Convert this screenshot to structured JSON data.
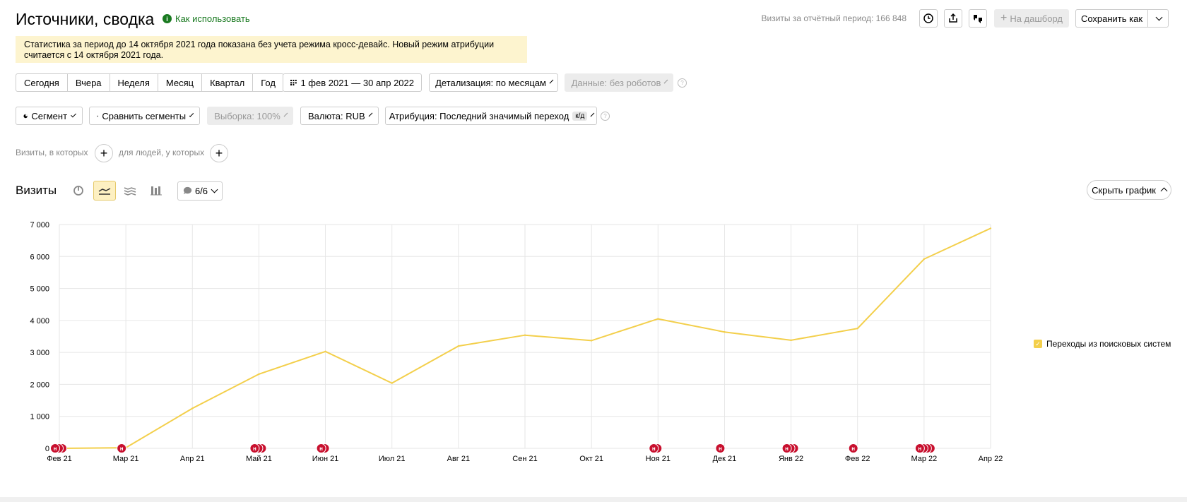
{
  "header": {
    "title": "Источники, сводка",
    "howto": "Как использовать",
    "visits_total": "Визиты за отчётный период: 166 848",
    "dashboard_btn": "На дашборд",
    "save_btn": "Сохранить как"
  },
  "notice": "Статистика за период до 14 октября 2021 года показана без учета режима кросс-девайс. Новый режим атрибуции считается с 14 октября 2021 года.",
  "periods": [
    "Сегодня",
    "Вчера",
    "Неделя",
    "Месяц",
    "Квартал",
    "Год"
  ],
  "date_range": "1 фев 2021 — 30 апр 2022",
  "detail": "Детализация: по месяцам",
  "data_filter": "Данные: без роботов",
  "segment": "Сегмент",
  "compare": "Сравнить сегменты",
  "sample": "Выборка: 100%",
  "currency": "Валюта: RUB",
  "attribution": "Атрибуция: Последний значимый переход",
  "attribution_badge": "к/д",
  "filters": {
    "visits_where": "Визиты, в которых",
    "people_where": "для людей, у которых"
  },
  "chart_header": {
    "title": "Визиты",
    "series_count": "6/6",
    "hide_btn": "Скрыть график"
  },
  "legend": {
    "label": "Переходы из поисковых систем",
    "color": "#f3cf4b"
  },
  "chart_data": {
    "type": "line",
    "x": [
      "Фев 21",
      "Мар 21",
      "Апр 21",
      "Май 21",
      "Июн 21",
      "Июл 21",
      "Авг 21",
      "Сен 21",
      "Окт 21",
      "Ноя 21",
      "Дек 21",
      "Янв 22",
      "Фев 22",
      "Мар 22",
      "Апр 22"
    ],
    "series": [
      {
        "name": "Переходы из поисковых систем",
        "color": "#f3cf4b",
        "values": [
          0,
          20,
          1250,
          2320,
          3030,
          2040,
          3200,
          3540,
          3370,
          4050,
          3640,
          3380,
          3750,
          5920,
          6880
        ]
      }
    ],
    "ylim": [
      0,
      7000
    ],
    "yticks": [
      0,
      1000,
      2000,
      3000,
      4000,
      5000,
      6000,
      7000
    ],
    "ytick_labels": [
      "0",
      "1 000",
      "2 000",
      "3 000",
      "4 000",
      "5 000",
      "6 000",
      "7 000"
    ],
    "grid": true,
    "marker_label": "н",
    "markers": [
      {
        "x_index": 0,
        "count": 3
      },
      {
        "x_index": 1,
        "count": 1
      },
      {
        "x_index": 3,
        "count": 3
      },
      {
        "x_index": 4,
        "count": 2
      },
      {
        "x_index": 9,
        "count": 2
      },
      {
        "x_index": 10,
        "count": 1
      },
      {
        "x_index": 11,
        "count": 3
      },
      {
        "x_index": 12,
        "count": 1
      },
      {
        "x_index": 13,
        "count": 4
      }
    ]
  }
}
